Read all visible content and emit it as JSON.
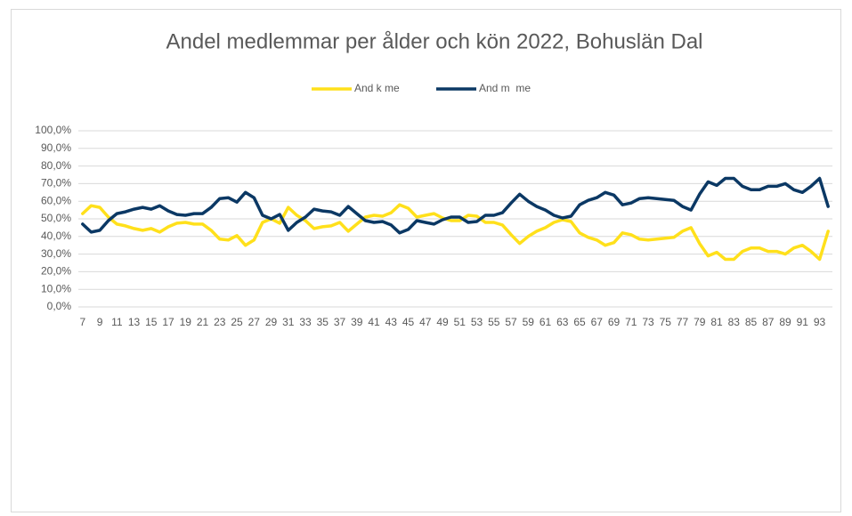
{
  "chart_data": {
    "type": "line",
    "title": "Andel medlemmar per ålder och kön 2022, Bohuslän Dal",
    "categories": [
      7,
      null,
      9,
      null,
      11,
      null,
      13,
      null,
      15,
      null,
      17,
      null,
      19,
      null,
      21,
      null,
      23,
      null,
      25,
      null,
      27,
      null,
      29,
      null,
      31,
      null,
      33,
      null,
      35,
      null,
      37,
      null,
      39,
      null,
      41,
      null,
      43,
      null,
      45,
      null,
      47,
      null,
      49,
      null,
      51,
      null,
      53,
      null,
      55,
      null,
      57,
      null,
      59,
      null,
      61,
      null,
      63,
      null,
      65,
      null,
      67,
      null,
      69,
      null,
      71,
      null,
      73,
      null,
      75,
      null,
      77,
      null,
      79,
      null,
      81,
      null,
      83,
      null,
      85,
      null,
      87,
      null,
      89,
      null,
      91,
      null,
      93,
      null
    ],
    "series": [
      {
        "name": "And k me",
        "color": "#FFE01B",
        "values": [
          53,
          57.5,
          56.5,
          51,
          47,
          46,
          44.5,
          43.5,
          44.5,
          42.5,
          45.5,
          47.5,
          48,
          47,
          47,
          43.5,
          38.5,
          38,
          40.5,
          35,
          38,
          48,
          50,
          47.5,
          56.5,
          52,
          49,
          44.5,
          45.5,
          46,
          48,
          43,
          47,
          51,
          52,
          51.5,
          53.5,
          58,
          56,
          51,
          52,
          53,
          50.5,
          49,
          49,
          52,
          51.5,
          48,
          48,
          46.5,
          41,
          36,
          40,
          43,
          45,
          48,
          49.5,
          48.5,
          42,
          39.5,
          38,
          35,
          36.5,
          42,
          41,
          38.5,
          38,
          38.5,
          39,
          39.5,
          43,
          45,
          36,
          29,
          31,
          27,
          27,
          31.5,
          33.5,
          33.5,
          31.5,
          31.5,
          30,
          33.5,
          35,
          31.5,
          27,
          43
        ]
      },
      {
        "name": "And m  me",
        "color": "#0B3864",
        "values": [
          47,
          42.5,
          43.5,
          49,
          53,
          54,
          55.5,
          56.5,
          55.5,
          57.5,
          54.5,
          52.5,
          52,
          53,
          53,
          56.5,
          61.5,
          62,
          59.5,
          65,
          62,
          52,
          50,
          52.5,
          43.5,
          48,
          51,
          55.5,
          54.5,
          54,
          52,
          57,
          53,
          49,
          48,
          48.5,
          46.5,
          42,
          44,
          49,
          48,
          47,
          49.5,
          51,
          51,
          48,
          48.5,
          52,
          52,
          53.5,
          59,
          64,
          60,
          57,
          55,
          52,
          50.5,
          51.5,
          58,
          60.5,
          62,
          65,
          63.5,
          58,
          59,
          61.5,
          62,
          61.5,
          61,
          60.5,
          57,
          55,
          64,
          71,
          69,
          73,
          73,
          68.5,
          66.5,
          66.5,
          68.5,
          68.5,
          70,
          66.5,
          65,
          68.5,
          73,
          57
        ]
      }
    ],
    "ylim": [
      0,
      100
    ],
    "yticks": [
      {
        "value": 0,
        "label": "0,0%"
      },
      {
        "value": 10,
        "label": "10,0%"
      },
      {
        "value": 20,
        "label": "20,0%"
      },
      {
        "value": 30,
        "label": "30,0%"
      },
      {
        "value": 40,
        "label": "40,0%"
      },
      {
        "value": 50,
        "label": "50,0%"
      },
      {
        "value": 60,
        "label": "60,0%"
      },
      {
        "value": 70,
        "label": "70,0%"
      },
      {
        "value": 80,
        "label": "80,0%"
      },
      {
        "value": 90,
        "label": "90,0%"
      },
      {
        "value": 100,
        "label": "100,0%"
      }
    ],
    "grid": true,
    "legend": "top"
  }
}
